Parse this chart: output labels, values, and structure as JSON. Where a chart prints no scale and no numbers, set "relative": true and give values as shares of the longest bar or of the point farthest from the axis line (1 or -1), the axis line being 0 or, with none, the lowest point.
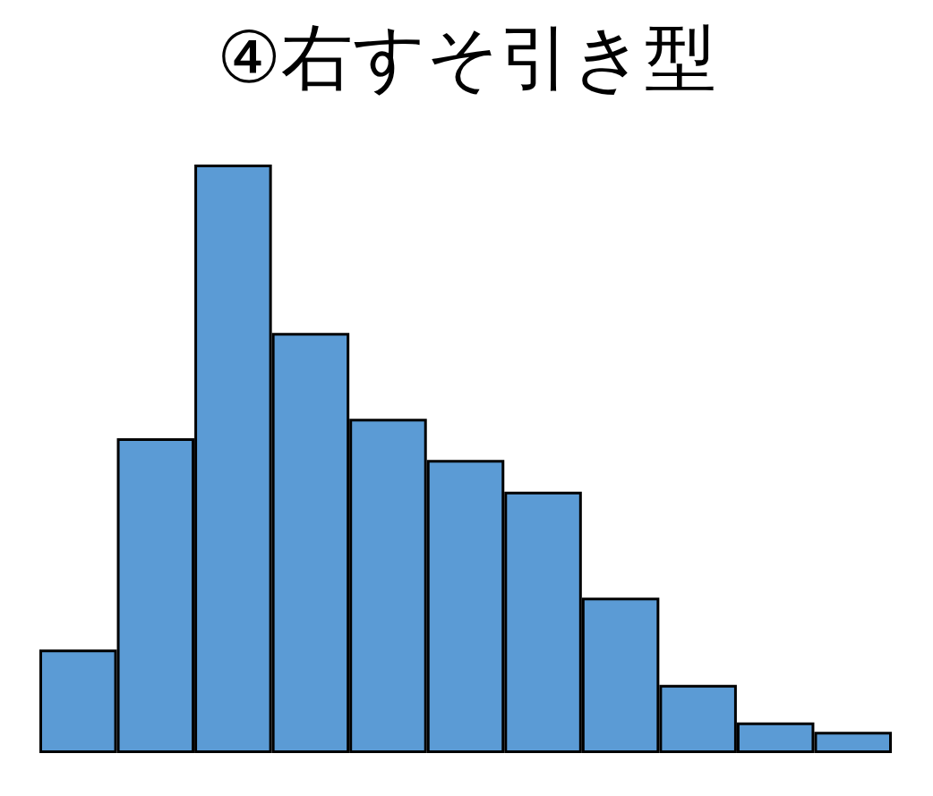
{
  "chart_data": {
    "type": "bar",
    "title": "④右すそ引き型",
    "relative": true,
    "categories": [
      null,
      null,
      null,
      null,
      null,
      null,
      null,
      null,
      null,
      null,
      null
    ],
    "values": [
      0.176,
      0.535,
      1,
      0.714,
      0.568,
      0.498,
      0.444,
      0.264,
      0.116,
      0.052,
      0.036
    ],
    "color": "#5b9bd5"
  }
}
